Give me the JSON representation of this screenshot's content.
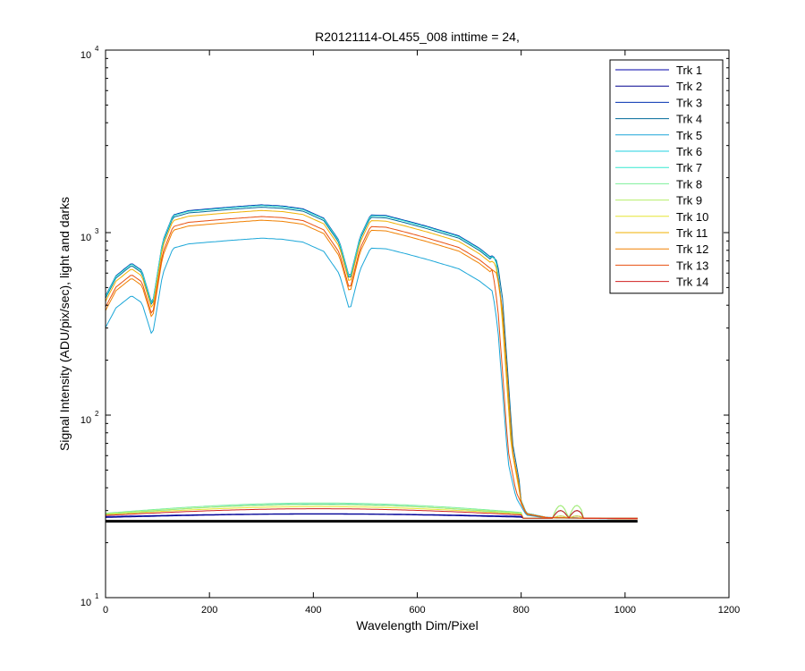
{
  "chart_data": {
    "type": "line",
    "title": "R20121114-OL455_008 inttime = 24,",
    "xlabel": "Wavelength Dim/Pixel",
    "ylabel": "Signal Intensity (ADU/pix/sec), light and darks",
    "xlim": [
      0,
      1200
    ],
    "ylim": [
      10,
      10000
    ],
    "yscale": "log",
    "x_ticks": [
      "0",
      "200",
      "400",
      "600",
      "800",
      "1000",
      "1200"
    ],
    "y_ticks": [
      {
        "base": "10",
        "exp": "1",
        "value": 10
      },
      {
        "base": "10",
        "exp": "2",
        "value": 100
      },
      {
        "base": "10",
        "exp": "3",
        "value": 1000
      },
      {
        "base": "10",
        "exp": "4",
        "value": 10000
      }
    ],
    "grid": false,
    "legend_position": "top-right",
    "series": [
      {
        "name": "Trk 1",
        "color": "#0000a8",
        "light": false,
        "base": 27.8,
        "amp": 1.0
      },
      {
        "name": "Trk 2",
        "color": "#00008f",
        "light": false,
        "base": 27.5,
        "amp": 1.2
      },
      {
        "name": "Trk 3",
        "color": "#0030b0",
        "light": true,
        "scale": 1.0,
        "dark_base": 27.0
      },
      {
        "name": "Trk 4",
        "color": "#006a9a",
        "light": true,
        "scale": 0.97,
        "dark_base": 27.0
      },
      {
        "name": "Trk 5",
        "color": "#1aa6d8",
        "light": true,
        "scale": 0.65,
        "dark_base": 27.0
      },
      {
        "name": "Trk 6",
        "color": "#22d0e0",
        "light": false,
        "base": 28.5,
        "amp": 4.0
      },
      {
        "name": "Trk 7",
        "color": "#35e8d0",
        "light": true,
        "scale": 0.99,
        "dark_base": 27.0
      },
      {
        "name": "Trk 8",
        "color": "#7cef9a",
        "light": false,
        "base": 29.0,
        "amp": 4.0
      },
      {
        "name": "Trk 9",
        "color": "#b5ef6a",
        "light": false,
        "base": 28.8,
        "amp": 3.5
      },
      {
        "name": "Trk 10",
        "color": "#e6e632",
        "light": false,
        "base": 28.5,
        "amp": 3.0
      },
      {
        "name": "Trk 11",
        "color": "#f0b000",
        "light": true,
        "scale": 0.93,
        "dark_base": 27.0
      },
      {
        "name": "Trk 12",
        "color": "#f08000",
        "light": true,
        "scale": 0.82,
        "dark_base": 27.0
      },
      {
        "name": "Trk 13",
        "color": "#e85010",
        "light": true,
        "scale": 0.86,
        "dark_base": 27.0
      },
      {
        "name": "Trk 14",
        "color": "#d02020",
        "light": false,
        "base": 28.2,
        "amp": 2.5
      }
    ],
    "light_profile": {
      "x": [
        0,
        20,
        50,
        70,
        90,
        110,
        130,
        160,
        200,
        240,
        300,
        340,
        380,
        420,
        450,
        470,
        490,
        510,
        540,
        580,
        620,
        680,
        720,
        745,
        755,
        765,
        775,
        790,
        810,
        850,
        1024
      ],
      "y": [
        450,
        580,
        680,
        620,
        400,
        900,
        1250,
        1320,
        1350,
        1380,
        1420,
        1400,
        1350,
        1200,
        900,
        560,
        950,
        1250,
        1240,
        1160,
        1080,
        960,
        820,
        720,
        450,
        180,
        70,
        40,
        29,
        27.5,
        27
      ]
    },
    "dark_floor": 26.2
  }
}
